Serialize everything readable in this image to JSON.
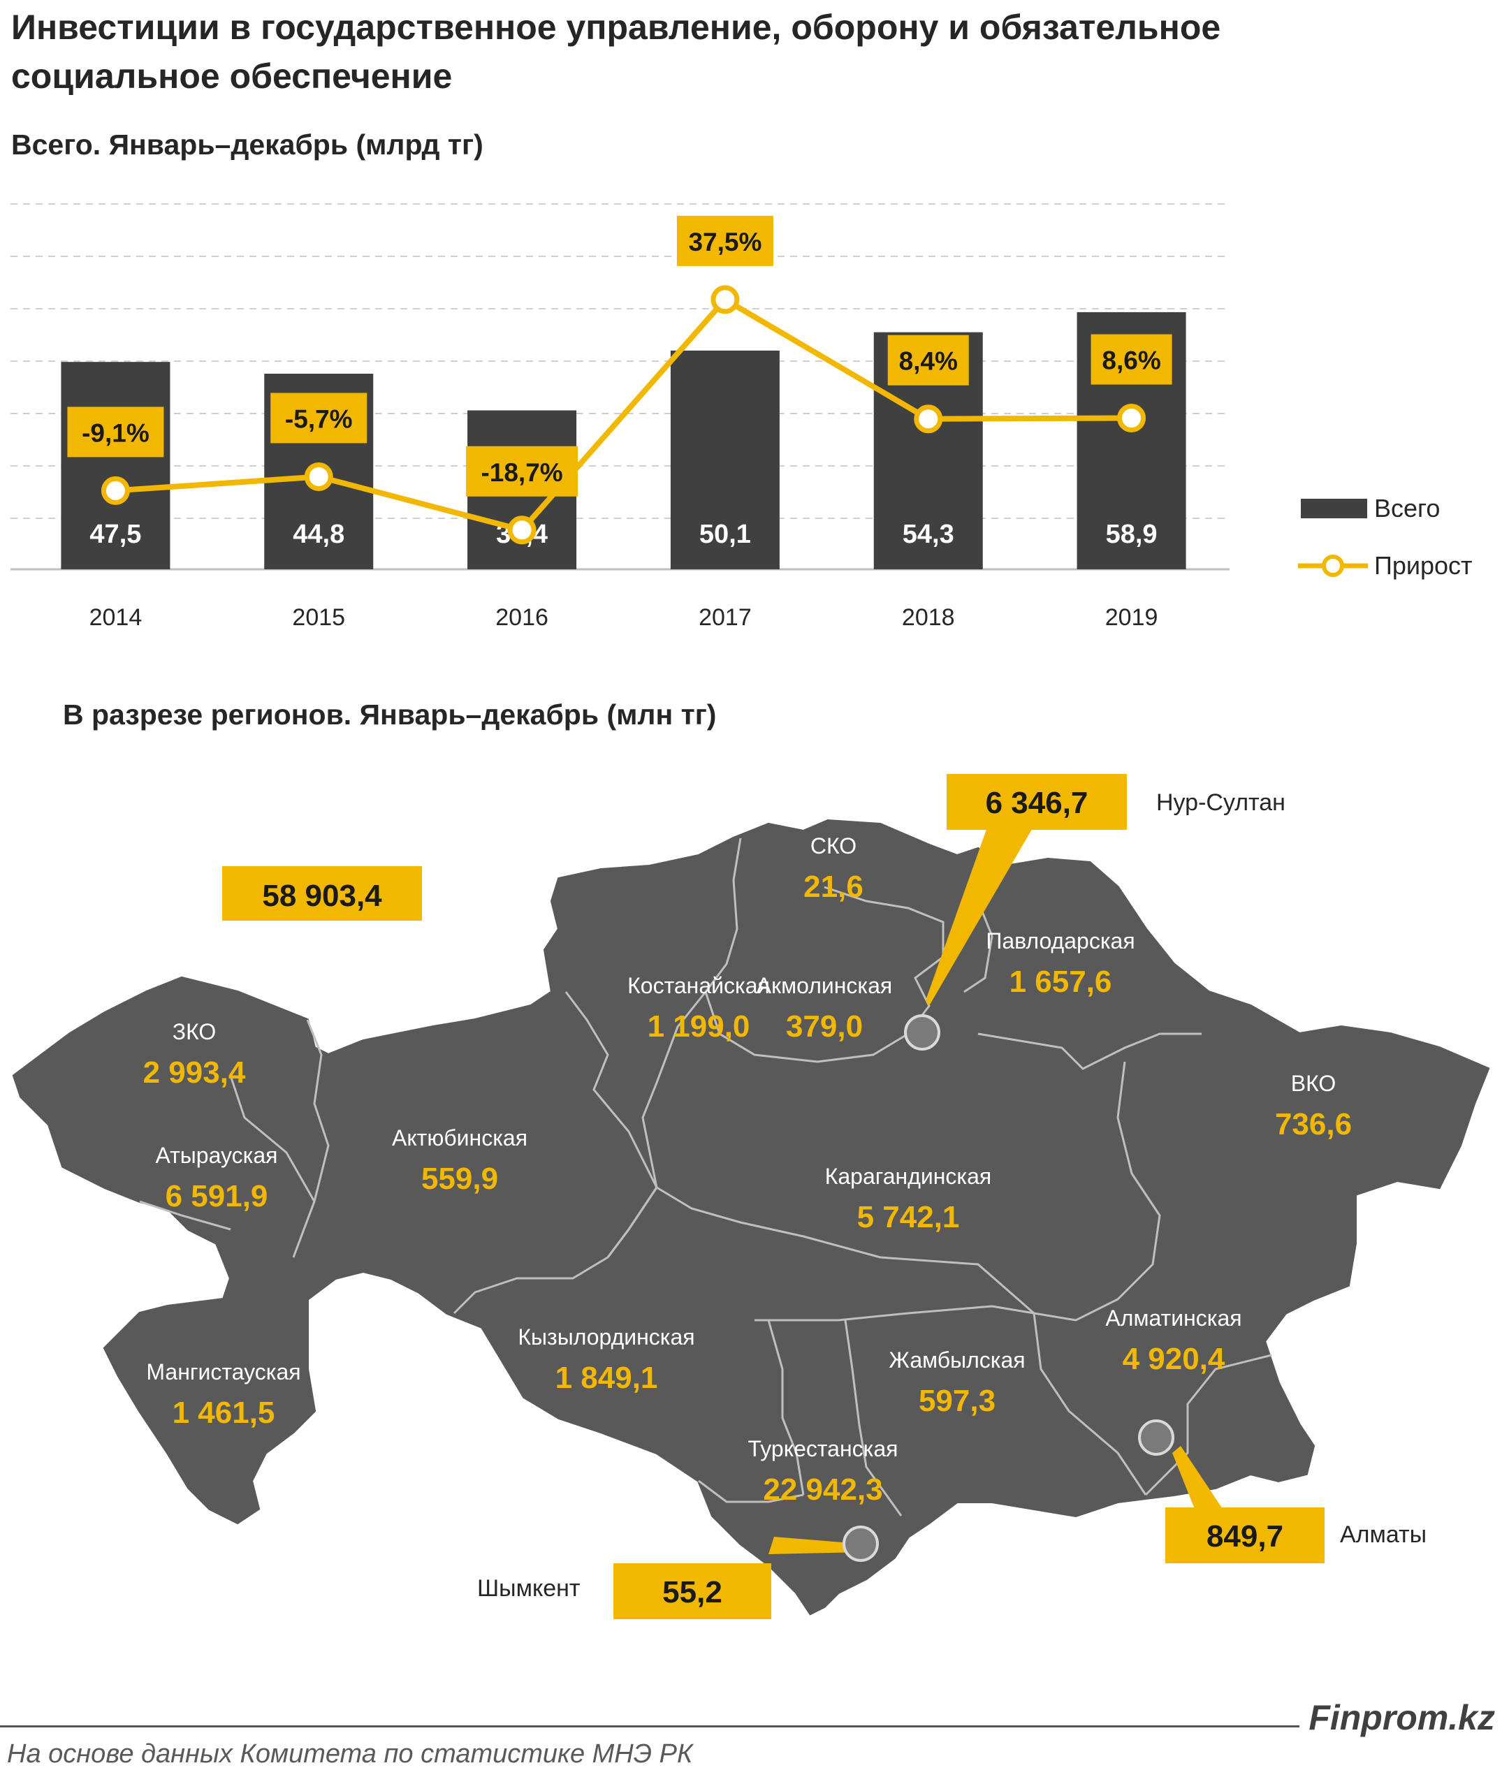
{
  "title": "Инвестиции в государственное управление, оборону и обязательное социальное обеспечение",
  "chart_subtitle": "Всего. Январь–декабрь  (млрд тг)",
  "map_subtitle": "В разрезе регионов. Январь–декабрь  (млн тг)",
  "chart_data": [
    {
      "type": "bar",
      "categories": [
        "2014",
        "2015",
        "2016",
        "2017",
        "2018",
        "2019"
      ],
      "series": [
        {
          "name": "Всего",
          "type": "bar",
          "values": [
            47.5,
            44.8,
            36.4,
            50.1,
            54.3,
            58.9
          ],
          "labels": [
            "47,5",
            "44,8",
            "36,4",
            "50,1",
            "54,3",
            "58,9"
          ]
        },
        {
          "name": "Прирост",
          "type": "line",
          "values": [
            -9.1,
            -5.7,
            -18.7,
            37.5,
            8.4,
            8.6
          ],
          "labels": [
            "-9,1%",
            "-5,7%",
            "-18,7%",
            "37,5%",
            "8,4%",
            "8,6%"
          ]
        }
      ],
      "legend_position": "right",
      "grid": true,
      "colors": {
        "bar": "#404040",
        "line": "#F2B800"
      }
    },
    {
      "type": "map",
      "total": "58 903,4",
      "regions": [
        {
          "name": "СКО",
          "value": "21,6"
        },
        {
          "name": "Павлодарская",
          "value": "1 657,6"
        },
        {
          "name": "Костанайская",
          "value": "1 199,0"
        },
        {
          "name": "Акмолинская",
          "value": "379,0"
        },
        {
          "name": "ЗКО",
          "value": "2 993,4"
        },
        {
          "name": "ВКО",
          "value": "736,6"
        },
        {
          "name": "Актюбинская",
          "value": "559,9"
        },
        {
          "name": "Атырауская",
          "value": "6 591,9"
        },
        {
          "name": "Карагандинская",
          "value": "5 742,1"
        },
        {
          "name": "Алматинская",
          "value": "4 920,4"
        },
        {
          "name": "Кызылординская",
          "value": "1 849,1"
        },
        {
          "name": "Жамбылская",
          "value": "597,3"
        },
        {
          "name": "Мангистауская",
          "value": "1 461,5"
        },
        {
          "name": "Туркестанская",
          "value": "22 942,3"
        }
      ],
      "cities": [
        {
          "name": "Нур-Султан",
          "value": "6 346,7"
        },
        {
          "name": "Алматы",
          "value": "849,7"
        },
        {
          "name": "Шымкент",
          "value": "55,2"
        }
      ],
      "colors": {
        "land": "#595959",
        "value_text": "#F2B800",
        "callout": "#F2B800"
      }
    }
  ],
  "footer": {
    "brand": "Finprom.kz",
    "source": "На основе данных  Комитета по статистике МНЭ РК"
  }
}
